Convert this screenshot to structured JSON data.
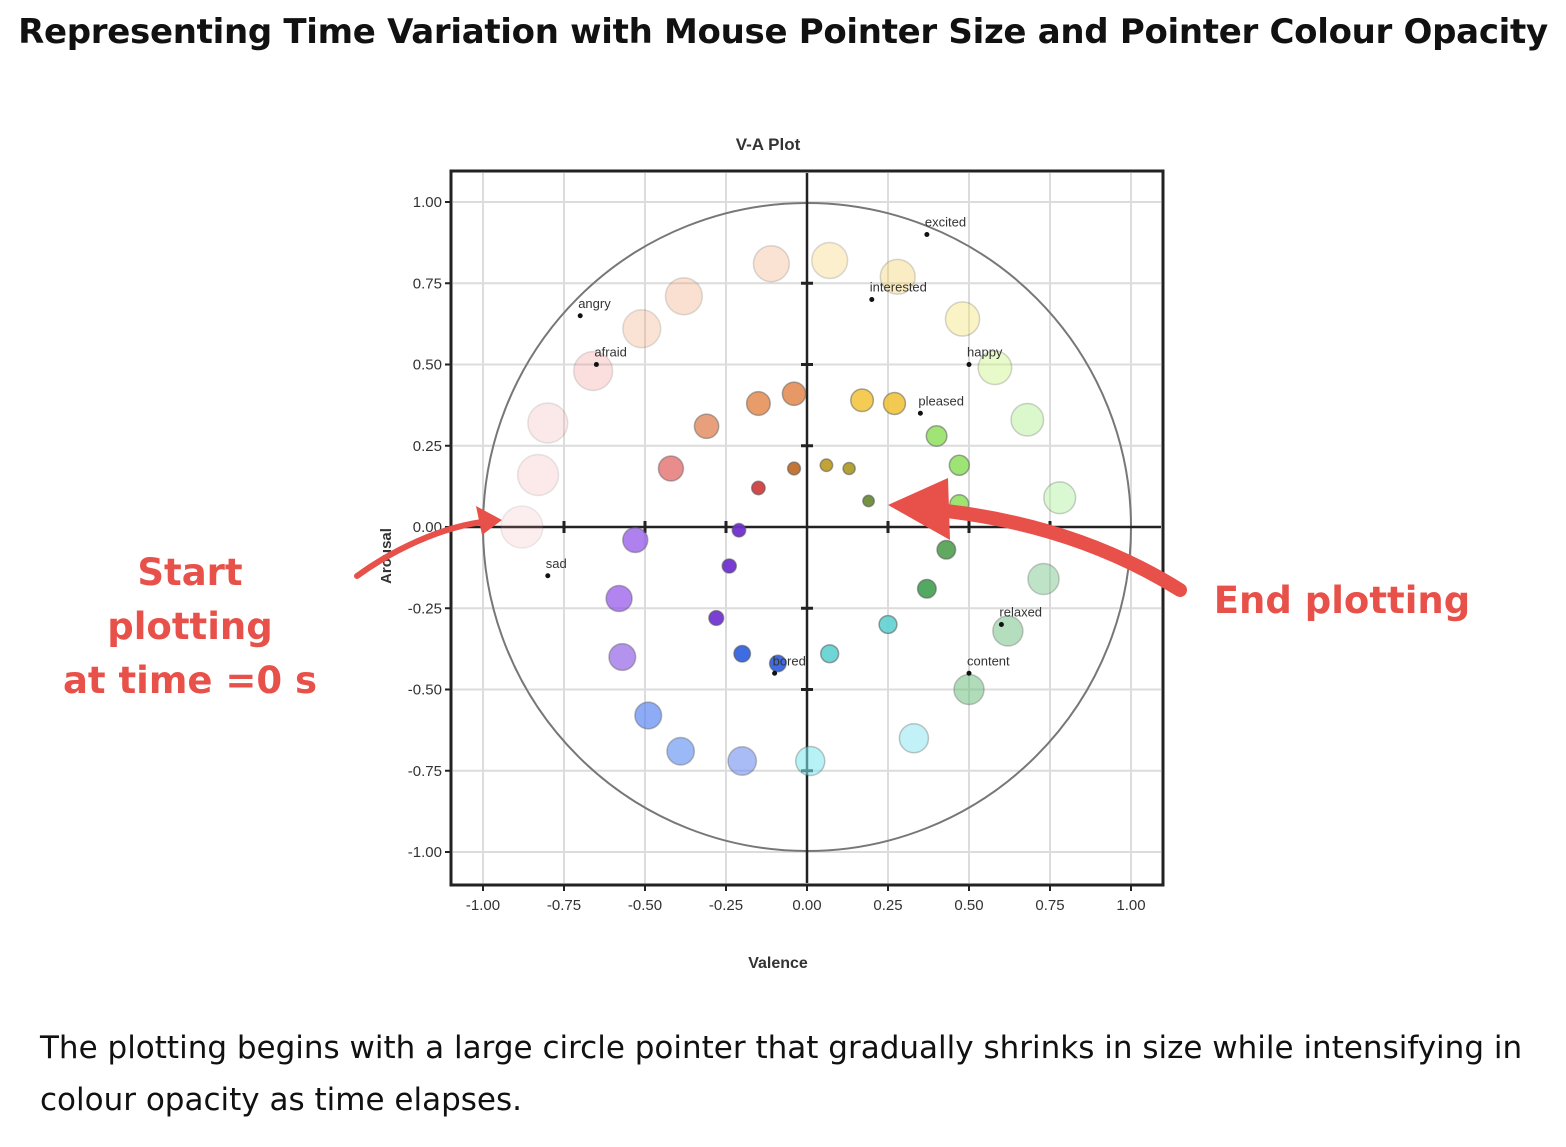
{
  "page": {
    "title": "Representing Time Variation with  Mouse Pointer Size and Pointer Colour Opacity",
    "start_callout": [
      "Start plotting",
      "at time =0 s"
    ],
    "end_callout": "End plotting",
    "caption": "The plotting begins with a large circle pointer that gradually shrinks in size while intensifying in colour opacity as time elapses."
  },
  "chart_data": {
    "type": "scatter",
    "title": "V-A Plot",
    "xlabel": "Valence",
    "ylabel": "Arousal",
    "xlim": [
      -1.1,
      1.1
    ],
    "ylim": [
      -1.1,
      1.1
    ],
    "xticks": [
      "-1.00",
      "-0.75",
      "-0.50",
      "-0.25",
      "0.00",
      "0.25",
      "0.50",
      "0.75",
      "1.00"
    ],
    "yticks": [
      "1.00",
      "0.75",
      "0.50",
      "0.25",
      "0.00",
      "-0.25",
      "-0.50",
      "-0.75",
      "-1.00"
    ],
    "grid": true,
    "unit_circle": true,
    "emotion_labels": [
      {
        "label": "excited",
        "x": 0.37,
        "y": 0.9
      },
      {
        "label": "interested",
        "x": 0.2,
        "y": 0.7
      },
      {
        "label": "angry",
        "x": -0.7,
        "y": 0.65
      },
      {
        "label": "afraid",
        "x": -0.65,
        "y": 0.5
      },
      {
        "label": "happy",
        "x": 0.5,
        "y": 0.5
      },
      {
        "label": "pleased",
        "x": 0.35,
        "y": 0.35
      },
      {
        "label": "sad",
        "x": -0.8,
        "y": -0.15
      },
      {
        "label": "relaxed",
        "x": 0.6,
        "y": -0.3
      },
      {
        "label": "content",
        "x": 0.5,
        "y": -0.45
      },
      {
        "label": "bored",
        "x": -0.1,
        "y": -0.45
      }
    ],
    "pointer_trail": [
      {
        "x": -0.88,
        "y": 0.0,
        "size": 1.0,
        "opacity": 0.18,
        "color": "#f0a0a0"
      },
      {
        "x": -0.83,
        "y": 0.16,
        "size": 0.97,
        "opacity": 0.22,
        "color": "#f0a0a0"
      },
      {
        "x": -0.8,
        "y": 0.32,
        "size": 0.94,
        "opacity": 0.24,
        "color": "#f0a0a0"
      },
      {
        "x": -0.66,
        "y": 0.48,
        "size": 0.91,
        "opacity": 0.28,
        "color": "#f08888"
      },
      {
        "x": -0.51,
        "y": 0.61,
        "size": 0.88,
        "opacity": 0.3,
        "color": "#f0a070"
      },
      {
        "x": -0.38,
        "y": 0.71,
        "size": 0.85,
        "opacity": 0.33,
        "color": "#f0a070"
      },
      {
        "x": -0.11,
        "y": 0.81,
        "size": 0.82,
        "opacity": 0.35,
        "color": "#f0b080"
      },
      {
        "x": 0.07,
        "y": 0.82,
        "size": 0.82,
        "opacity": 0.35,
        "color": "#f5d070"
      },
      {
        "x": 0.28,
        "y": 0.77,
        "size": 0.79,
        "opacity": 0.38,
        "color": "#f5d060"
      },
      {
        "x": 0.48,
        "y": 0.64,
        "size": 0.77,
        "opacity": 0.4,
        "color": "#f0e070"
      },
      {
        "x": 0.58,
        "y": 0.49,
        "size": 0.75,
        "opacity": 0.42,
        "color": "#c8f080"
      },
      {
        "x": 0.68,
        "y": 0.33,
        "size": 0.72,
        "opacity": 0.45,
        "color": "#b0f090"
      },
      {
        "x": 0.78,
        "y": 0.09,
        "size": 0.7,
        "opacity": 0.47,
        "color": "#b0f0a0"
      },
      {
        "x": 0.73,
        "y": -0.16,
        "size": 0.68,
        "opacity": 0.5,
        "color": "#80c890"
      },
      {
        "x": 0.62,
        "y": -0.32,
        "size": 0.65,
        "opacity": 0.52,
        "color": "#70c080"
      },
      {
        "x": 0.5,
        "y": -0.5,
        "size": 0.65,
        "opacity": 0.55,
        "color": "#70c080"
      },
      {
        "x": 0.33,
        "y": -0.65,
        "size": 0.62,
        "opacity": 0.55,
        "color": "#90e8f0"
      },
      {
        "x": 0.01,
        "y": -0.72,
        "size": 0.62,
        "opacity": 0.57,
        "color": "#80e8f0"
      },
      {
        "x": -0.2,
        "y": -0.72,
        "size": 0.6,
        "opacity": 0.6,
        "color": "#7090f0"
      },
      {
        "x": -0.39,
        "y": -0.69,
        "size": 0.57,
        "opacity": 0.63,
        "color": "#6090f0"
      },
      {
        "x": -0.49,
        "y": -0.58,
        "size": 0.55,
        "opacity": 0.65,
        "color": "#5080f0"
      },
      {
        "x": -0.57,
        "y": -0.4,
        "size": 0.55,
        "opacity": 0.68,
        "color": "#9060e8"
      },
      {
        "x": -0.58,
        "y": -0.22,
        "size": 0.53,
        "opacity": 0.7,
        "color": "#9050e8"
      },
      {
        "x": -0.53,
        "y": -0.04,
        "size": 0.5,
        "opacity": 0.72,
        "color": "#9050e8"
      },
      {
        "x": -0.42,
        "y": 0.18,
        "size": 0.5,
        "opacity": 0.72,
        "color": "#e06060"
      },
      {
        "x": -0.31,
        "y": 0.31,
        "size": 0.48,
        "opacity": 0.75,
        "color": "#e08050"
      },
      {
        "x": -0.15,
        "y": 0.38,
        "size": 0.46,
        "opacity": 0.78,
        "color": "#e08040"
      },
      {
        "x": -0.04,
        "y": 0.41,
        "size": 0.45,
        "opacity": 0.8,
        "color": "#e08040"
      },
      {
        "x": 0.17,
        "y": 0.39,
        "size": 0.43,
        "opacity": 0.82,
        "color": "#f0c030"
      },
      {
        "x": 0.27,
        "y": 0.38,
        "size": 0.41,
        "opacity": 0.84,
        "color": "#f0c030"
      },
      {
        "x": 0.4,
        "y": 0.28,
        "size": 0.37,
        "opacity": 0.86,
        "color": "#90e060"
      },
      {
        "x": 0.47,
        "y": 0.19,
        "size": 0.35,
        "opacity": 0.87,
        "color": "#90e060"
      },
      {
        "x": 0.47,
        "y": 0.07,
        "size": 0.32,
        "opacity": 0.88,
        "color": "#90e060"
      },
      {
        "x": 0.43,
        "y": -0.07,
        "size": 0.31,
        "opacity": 0.9,
        "color": "#50a050"
      },
      {
        "x": 0.37,
        "y": -0.19,
        "size": 0.31,
        "opacity": 0.9,
        "color": "#40a050"
      },
      {
        "x": 0.25,
        "y": -0.3,
        "size": 0.29,
        "opacity": 0.9,
        "color": "#60d0d0"
      },
      {
        "x": 0.07,
        "y": -0.39,
        "size": 0.29,
        "opacity": 0.9,
        "color": "#60d0d0"
      },
      {
        "x": -0.09,
        "y": -0.42,
        "size": 0.25,
        "opacity": 0.92,
        "color": "#3060e0"
      },
      {
        "x": -0.2,
        "y": -0.39,
        "size": 0.25,
        "opacity": 0.92,
        "color": "#3060e0"
      },
      {
        "x": -0.28,
        "y": -0.28,
        "size": 0.2,
        "opacity": 0.93,
        "color": "#7030d0"
      },
      {
        "x": -0.24,
        "y": -0.12,
        "size": 0.18,
        "opacity": 0.94,
        "color": "#7030d0"
      },
      {
        "x": -0.21,
        "y": -0.01,
        "size": 0.16,
        "opacity": 0.95,
        "color": "#7030d0"
      },
      {
        "x": -0.15,
        "y": 0.12,
        "size": 0.16,
        "opacity": 0.95,
        "color": "#d04040"
      },
      {
        "x": -0.04,
        "y": 0.18,
        "size": 0.14,
        "opacity": 0.96,
        "color": "#c07030"
      },
      {
        "x": 0.06,
        "y": 0.19,
        "size": 0.13,
        "opacity": 0.97,
        "color": "#c0a030"
      },
      {
        "x": 0.13,
        "y": 0.18,
        "size": 0.12,
        "opacity": 0.97,
        "color": "#b0a030"
      },
      {
        "x": 0.19,
        "y": 0.08,
        "size": 0.1,
        "opacity": 0.98,
        "color": "#709040"
      }
    ]
  }
}
